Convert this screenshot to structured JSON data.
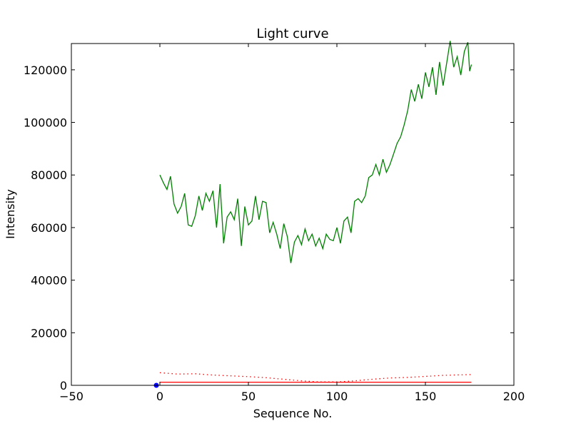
{
  "chart_data": {
    "type": "line",
    "title": "Light curve",
    "xlabel": "Sequence No.",
    "ylabel": "Intensity",
    "xlim": [
      -50,
      200
    ],
    "ylim": [
      0,
      130000
    ],
    "xticks": [
      -50,
      0,
      50,
      100,
      150,
      200
    ],
    "yticks": [
      0,
      20000,
      40000,
      60000,
      80000,
      100000,
      120000
    ],
    "grid": false,
    "colors": {
      "green": "#008000",
      "red": "#ff0000",
      "blue": "#0000ff",
      "axis": "#000000"
    },
    "series": [
      {
        "color": "green",
        "style": "solid",
        "x": [
          0,
          2,
          4,
          6,
          8,
          10,
          12,
          14,
          16,
          18,
          20,
          22,
          24,
          26,
          28,
          30,
          32,
          34,
          36,
          38,
          40,
          42,
          44,
          46,
          48,
          50,
          52,
          54,
          56,
          58,
          60,
          62,
          64,
          66,
          68,
          70,
          72,
          74,
          76,
          78,
          80,
          82,
          84,
          86,
          88,
          90,
          92,
          94,
          96,
          98,
          100,
          102,
          104,
          106,
          108,
          110,
          112,
          114,
          116,
          118,
          120,
          122,
          124,
          126,
          128,
          130,
          132,
          134,
          136,
          138,
          140,
          142,
          144,
          146,
          148,
          150,
          152,
          154,
          156,
          158,
          160,
          162,
          164,
          166,
          168,
          170,
          172,
          174,
          175,
          176
        ],
        "y": [
          80000,
          77000,
          74500,
          79500,
          69000,
          65500,
          68000,
          73000,
          61000,
          60500,
          64500,
          72000,
          66500,
          73000,
          70000,
          74000,
          60000,
          76500,
          54000,
          64000,
          66000,
          63000,
          71000,
          53000,
          68000,
          61000,
          62500,
          72000,
          63000,
          70000,
          69500,
          58000,
          62000,
          57500,
          52000,
          61500,
          56500,
          46500,
          54500,
          57000,
          53500,
          59500,
          55000,
          57500,
          53000,
          56000,
          52000,
          57500,
          55500,
          55000,
          60000,
          54000,
          62500,
          64000,
          58000,
          70000,
          71000,
          69500,
          72000,
          79000,
          80000,
          84000,
          80000,
          86000,
          81000,
          84000,
          88000,
          92000,
          94500,
          99000,
          104500,
          112500,
          108000,
          114500,
          109000,
          119000,
          113500,
          121000,
          110500,
          123000,
          114000,
          122500,
          131000,
          121000,
          125000,
          118000,
          127000,
          130500,
          119500,
          122000
        ],
        "points_note": ""
      },
      {
        "color": "red",
        "style": "dotted",
        "x": [
          0,
          10,
          20,
          30,
          40,
          50,
          60,
          70,
          80,
          90,
          100,
          110,
          120,
          130,
          140,
          150,
          160,
          170,
          176
        ],
        "y": [
          4800,
          4300,
          4400,
          3900,
          3600,
          3300,
          2900,
          2300,
          1700,
          1300,
          1300,
          1700,
          2300,
          2800,
          3000,
          3400,
          3800,
          4000,
          4100
        ]
      },
      {
        "color": "red",
        "style": "solid",
        "x": [
          0,
          176
        ],
        "y": [
          1200,
          1200
        ]
      },
      {
        "color": "blue",
        "style": "marker",
        "x": [
          -2
        ],
        "y": [
          0
        ]
      }
    ]
  }
}
